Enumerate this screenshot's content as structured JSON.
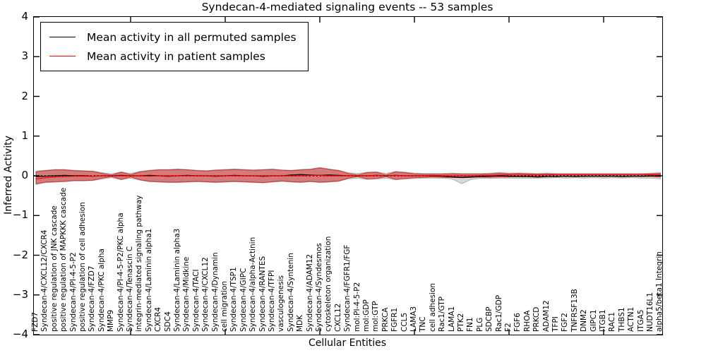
{
  "title": "Syndecan-4-mediated signaling events -- 53 samples",
  "axes": {
    "ylabel": "Inferred Activity",
    "xlabel": "Cellular Entities",
    "ylim": [
      -4,
      4
    ],
    "yticks": [
      {
        "v": 4,
        "label": "4"
      },
      {
        "v": 3,
        "label": "3"
      },
      {
        "v": 2,
        "label": "2"
      },
      {
        "v": 1,
        "label": "1"
      },
      {
        "v": 0,
        "label": "0"
      },
      {
        "v": -1,
        "label": "−1"
      },
      {
        "v": -2,
        "label": "−2"
      },
      {
        "v": -3,
        "label": "−3"
      },
      {
        "v": -4,
        "label": "−4"
      }
    ],
    "x_major_tick_every": 10,
    "grid": false
  },
  "legend": {
    "position": "upper-left",
    "items": [
      {
        "label": "Mean activity in all permuted samples",
        "color": "#000000"
      },
      {
        "label": "Mean activity in patient samples",
        "color": "#ff0000"
      }
    ]
  },
  "colors": {
    "patient_band_fill": "rgba(210,30,30,0.5)",
    "patient_band_edge": "rgba(190,25,25,0.75)",
    "permuted_band_fill": "rgba(135,135,135,0.33)",
    "permuted_band_edge": "rgba(110,110,110,0.45)",
    "zero_line": "#000000",
    "axis": "#000000"
  },
  "chart_data": {
    "type": "area",
    "title": "Syndecan-4-mediated signaling events -- 53 samples",
    "xlabel": "Cellular Entities",
    "ylabel": "Inferred Activity",
    "ylim": [
      -4,
      4
    ],
    "legend_position": "upper-left",
    "categories": [
      "FZD7",
      "Syndecan-4/CXCL12/CXCR4",
      "positive regulation of JNK cascade",
      "positive regulation of MAPKKK cascade",
      "Syndecan-4/PI-4-5-P2",
      "positive regulation of cell adhesion",
      "Syndecan-4/FZD7",
      "Syndecan-4/PKC alpha",
      "MMP9",
      "Syndecan-4/PI-4-5-P2/PKC alpha",
      "Syndecan-4/Tenascin C",
      "integrin-mediated signaling pathway",
      "Syndecan-4/Laminin alpha1",
      "CXCR4",
      "SDC4",
      "Syndecan-4/Laminin alpha3",
      "Syndecan-4/Midkine",
      "Syndecan-4/TACI",
      "Syndecan-4/CXCL12",
      "Syndecan-4/Dynamin",
      "cell migration",
      "Syndecan-4/TSP1",
      "Syndecan-4/GIPC",
      "Syndecan-4/alpha-Actinin",
      "Syndecan-4/RANTES",
      "Syndecan-4/TFPI",
      "vasculogenesis",
      "Syndecan-4/Syntenin",
      "MDK",
      "Syndecan-4/ADAM12",
      "Syndecan-4/Syndesmos",
      "cytoskeleton organization",
      "CXCL12",
      "Syndecan-4/FGFR1/FGF",
      "mol:PI-4-5-P2",
      "mol:GDP",
      "mol:GTP",
      "PRKCA",
      "FGFR1",
      "CCL5",
      "LAMA3",
      "TNC",
      "cell adhesion",
      "Rac1/GTP",
      "LAMA1",
      "PTK2",
      "FN1",
      "PLG",
      "SDCBP",
      "Rac1/GDP",
      "F2",
      "FGF6",
      "RHOA",
      "PRKCD",
      "ADAM12",
      "TFPI",
      "FGF2",
      "TNFRSF13B",
      "DNM2",
      "GIPC1",
      "ITGB1",
      "RAC1",
      "THBS1",
      "ACTN1",
      "ITGA5",
      "NUDT16L1",
      "alpha5/beta1 Integrin"
    ],
    "series": [
      {
        "name": "Mean activity in all permuted samples",
        "kind": "line",
        "color": "#000000",
        "values": [
          -0.02,
          -0.01,
          0,
          0.01,
          0,
          0,
          -0.01,
          0,
          0,
          0.01,
          0,
          0,
          0.01,
          0,
          -0.01,
          0,
          0.01,
          0,
          0,
          -0.01,
          0,
          0.01,
          0,
          0,
          -0.01,
          0,
          0,
          0.02,
          0.03,
          0.02,
          0.01,
          0.02,
          0.01,
          0,
          0,
          0,
          0.01,
          0,
          0.01,
          0,
          0,
          0,
          0,
          -0.01,
          -0.03,
          -0.04,
          -0.03,
          -0.02,
          -0.01,
          0,
          -0.01,
          -0.02,
          -0.02,
          -0.03,
          -0.02,
          -0.02,
          -0.01,
          -0.02,
          -0.01,
          -0.01,
          -0.01,
          -0.01,
          -0.02,
          -0.01,
          -0.01,
          0,
          0
        ]
      },
      {
        "name": "Mean activity in patient samples",
        "kind": "line",
        "color": "#ff0000",
        "values": [
          -0.08,
          -0.05,
          -0.03,
          -0.02,
          -0.01,
          -0.01,
          -0.01,
          0,
          0,
          0,
          0,
          0,
          -0.01,
          0,
          0,
          0,
          0,
          0,
          0,
          0,
          0,
          0,
          0,
          0,
          0,
          0,
          0,
          0,
          0,
          0.01,
          0.01,
          0,
          0,
          0,
          0,
          0,
          0.01,
          0,
          0.01,
          0,
          0,
          0,
          0.01,
          0,
          0,
          0,
          0,
          0.01,
          0.01,
          0.02,
          0.02,
          0.02,
          0.02,
          0.02,
          0.02,
          0.03,
          0.03,
          0.03,
          0.03,
          0.03,
          0.03,
          0.03,
          0.03,
          0.03,
          0.03,
          0.03,
          0.03
        ]
      },
      {
        "name": "Permuted samples band",
        "kind": "band",
        "upper": [
          0.12,
          0.14,
          0.16,
          0.16,
          0.14,
          0.13,
          0.12,
          0.08,
          0.05,
          0.1,
          0.06,
          0.11,
          0.14,
          0.16,
          0.16,
          0.17,
          0.16,
          0.14,
          0.13,
          0.15,
          0.16,
          0.17,
          0.16,
          0.15,
          0.16,
          0.17,
          0.15,
          0.14,
          0.16,
          0.17,
          0.21,
          0.17,
          0.14,
          0.08,
          0.06,
          0.09,
          0.1,
          0.06,
          0.11,
          0.09,
          0.07,
          0.06,
          0.06,
          0.06,
          0.07,
          0.06,
          0.06,
          0.06,
          0.07,
          0.08,
          0.07,
          0.07,
          0.07,
          0.06,
          0.07,
          0.06,
          0.06,
          0.06,
          0.06,
          0.06,
          0.06,
          0.06,
          0.06,
          0.06,
          0.06,
          0.07,
          0.08
        ],
        "lower": [
          -0.22,
          -0.17,
          -0.16,
          -0.15,
          -0.13,
          -0.13,
          -0.12,
          -0.08,
          -0.05,
          -0.1,
          -0.06,
          -0.11,
          -0.15,
          -0.16,
          -0.17,
          -0.17,
          -0.16,
          -0.15,
          -0.16,
          -0.17,
          -0.16,
          -0.15,
          -0.16,
          -0.17,
          -0.18,
          -0.16,
          -0.14,
          -0.16,
          -0.17,
          -0.15,
          -0.17,
          -0.16,
          -0.14,
          -0.08,
          -0.06,
          -0.09,
          -0.08,
          -0.06,
          -0.1,
          -0.08,
          -0.07,
          -0.06,
          -0.06,
          -0.06,
          -0.08,
          -0.2,
          -0.09,
          -0.06,
          -0.07,
          -0.06,
          -0.06,
          -0.06,
          -0.06,
          -0.06,
          -0.06,
          -0.05,
          -0.06,
          -0.05,
          -0.06,
          -0.05,
          -0.06,
          -0.05,
          -0.06,
          -0.05,
          -0.06,
          -0.06,
          -0.08
        ]
      },
      {
        "name": "Patient samples band",
        "kind": "band",
        "upper": [
          0.1,
          0.13,
          0.15,
          0.15,
          0.13,
          0.12,
          0.11,
          0.06,
          0.02,
          0.09,
          0.03,
          0.1,
          0.13,
          0.15,
          0.15,
          0.16,
          0.15,
          0.13,
          0.12,
          0.14,
          0.15,
          0.16,
          0.15,
          0.14,
          0.15,
          0.16,
          0.14,
          0.13,
          0.15,
          0.16,
          0.2,
          0.16,
          0.13,
          0.06,
          0.02,
          0.08,
          0.09,
          0.02,
          0.1,
          0.08,
          0.05,
          0.04,
          0.04,
          0.04,
          0.05,
          0.04,
          0.04,
          0.04,
          0.05,
          0.07,
          0.05,
          0.06,
          0.05,
          0.04,
          0.05,
          0.04,
          0.04,
          0.04,
          0.04,
          0.04,
          0.04,
          0.04,
          0.04,
          0.04,
          0.04,
          0.05,
          0.06
        ],
        "lower": [
          -0.2,
          -0.16,
          -0.15,
          -0.14,
          -0.12,
          -0.12,
          -0.11,
          -0.06,
          -0.02,
          -0.09,
          -0.03,
          -0.1,
          -0.14,
          -0.15,
          -0.16,
          -0.16,
          -0.15,
          -0.14,
          -0.15,
          -0.16,
          -0.15,
          -0.14,
          -0.15,
          -0.16,
          -0.17,
          -0.15,
          -0.13,
          -0.15,
          -0.16,
          -0.14,
          -0.16,
          -0.15,
          -0.13,
          -0.06,
          -0.02,
          -0.08,
          -0.07,
          -0.02,
          -0.09,
          -0.07,
          -0.05,
          -0.04,
          -0.03,
          -0.04,
          -0.04,
          -0.05,
          -0.04,
          -0.03,
          -0.04,
          -0.03,
          -0.03,
          -0.02,
          -0.02,
          -0.02,
          -0.02,
          -0.01,
          -0.02,
          -0.01,
          -0.02,
          -0.01,
          -0.02,
          -0.01,
          -0.02,
          -0.01,
          -0.02,
          -0.02,
          -0.03
        ]
      }
    ],
    "zero_line": {
      "y": 0,
      "style": "dashed",
      "color": "#000000"
    }
  }
}
